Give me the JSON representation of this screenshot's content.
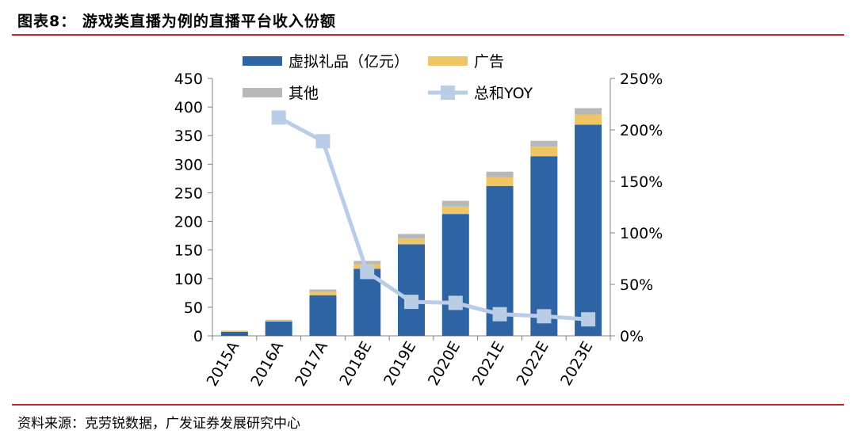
{
  "header": {
    "title": "图表8：  游戏类直播为例的直播平台收入份额"
  },
  "footer": {
    "source": "资料来源：克劳锐数据，广发证券发展研究中心"
  },
  "chart_data": {
    "type": "bar",
    "stacked": true,
    "title": "",
    "xlabel": "",
    "ylabel": "",
    "categories": [
      "2015A",
      "2016A",
      "2017A",
      "2018E",
      "2019E",
      "2020E",
      "2021E",
      "2022E",
      "2023E"
    ],
    "series": [
      {
        "name": "虚拟礼品（亿元）",
        "kind": "bar",
        "color": "#2e64a4",
        "values": [
          7,
          25,
          71,
          117,
          160,
          213,
          262,
          314,
          369
        ]
      },
      {
        "name": "广告",
        "kind": "bar",
        "color": "#f0c566",
        "values": [
          1,
          2,
          6,
          8,
          10,
          13,
          15,
          17,
          18
        ]
      },
      {
        "name": "其他",
        "kind": "bar",
        "color": "#b8b8b8",
        "values": [
          1,
          1,
          4,
          6,
          8,
          10,
          10,
          10,
          11
        ]
      },
      {
        "name": "总和YOY",
        "kind": "line",
        "axis": "right",
        "color": "#b9cde6",
        "values": [
          null,
          2.12,
          1.89,
          0.62,
          0.33,
          0.32,
          0.21,
          0.19,
          0.16
        ]
      }
    ],
    "ylim": [
      0,
      450
    ],
    "yticks": [
      0,
      50,
      100,
      150,
      200,
      250,
      300,
      350,
      400,
      450
    ],
    "y2lim": [
      0,
      2.5
    ],
    "y2ticks": [
      "0%",
      "50%",
      "100%",
      "150%",
      "200%",
      "250%"
    ],
    "grid": false,
    "legend": "top"
  }
}
